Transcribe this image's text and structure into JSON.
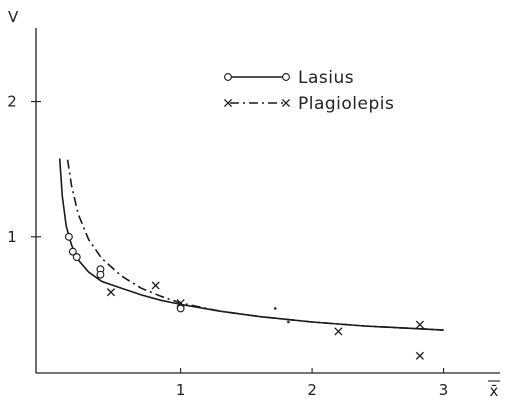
{
  "chart_data": {
    "type": "scatter",
    "title": "",
    "xlabel": "x̄",
    "ylabel": "V",
    "xlim": [
      -0.1,
      3.3
    ],
    "ylim": [
      0.0,
      2.5
    ],
    "x_ticks": [
      {
        "value": 1,
        "label": "1"
      },
      {
        "value": 2,
        "label": "2"
      },
      {
        "value": 3,
        "label": "3"
      }
    ],
    "y_ticks": [
      {
        "value": 1,
        "label": "1"
      },
      {
        "value": 2,
        "label": "2"
      }
    ],
    "grid": false,
    "legend_position": "top-right",
    "series": [
      {
        "name": "Lasius",
        "marker": "circle",
        "line": "solid",
        "points": [
          [
            0.15,
            1.0
          ],
          [
            0.18,
            0.89
          ],
          [
            0.21,
            0.85
          ],
          [
            0.39,
            0.76
          ],
          [
            0.39,
            0.72
          ],
          [
            1.0,
            0.47
          ]
        ],
        "curve": [
          [
            0.08,
            1.58
          ],
          [
            0.1,
            1.3
          ],
          [
            0.13,
            1.08
          ],
          [
            0.17,
            0.94
          ],
          [
            0.22,
            0.83
          ],
          [
            0.3,
            0.74
          ],
          [
            0.4,
            0.67
          ],
          [
            0.55,
            0.62
          ],
          [
            0.7,
            0.57
          ],
          [
            0.85,
            0.53
          ],
          [
            1.0,
            0.5
          ],
          [
            1.3,
            0.45
          ],
          [
            1.6,
            0.41
          ],
          [
            2.0,
            0.37
          ],
          [
            2.4,
            0.34
          ],
          [
            2.8,
            0.32
          ],
          [
            3.0,
            0.31
          ]
        ]
      },
      {
        "name": "Plagiolepis",
        "marker": "cross",
        "line": "dash-dot",
        "points": [
          [
            0.47,
            0.59
          ],
          [
            0.81,
            0.64
          ],
          [
            1.0,
            0.51
          ],
          [
            2.2,
            0.3
          ],
          [
            2.82,
            0.35
          ],
          [
            2.82,
            0.12
          ]
        ],
        "curve": [
          [
            0.14,
            1.57
          ],
          [
            0.17,
            1.38
          ],
          [
            0.22,
            1.17
          ],
          [
            0.3,
            0.98
          ],
          [
            0.4,
            0.84
          ],
          [
            0.55,
            0.71
          ],
          [
            0.7,
            0.62
          ],
          [
            0.85,
            0.56
          ],
          [
            1.0,
            0.51
          ],
          [
            1.3,
            0.45
          ],
          [
            1.6,
            0.41
          ],
          [
            2.0,
            0.37
          ],
          [
            2.4,
            0.34
          ],
          [
            2.8,
            0.32
          ],
          [
            3.0,
            0.31
          ]
        ]
      }
    ],
    "extra_marks": [
      {
        "x": 1.72,
        "y": 0.47,
        "marker": "dot"
      },
      {
        "x": 1.82,
        "y": 0.37,
        "marker": "dot"
      }
    ]
  }
}
